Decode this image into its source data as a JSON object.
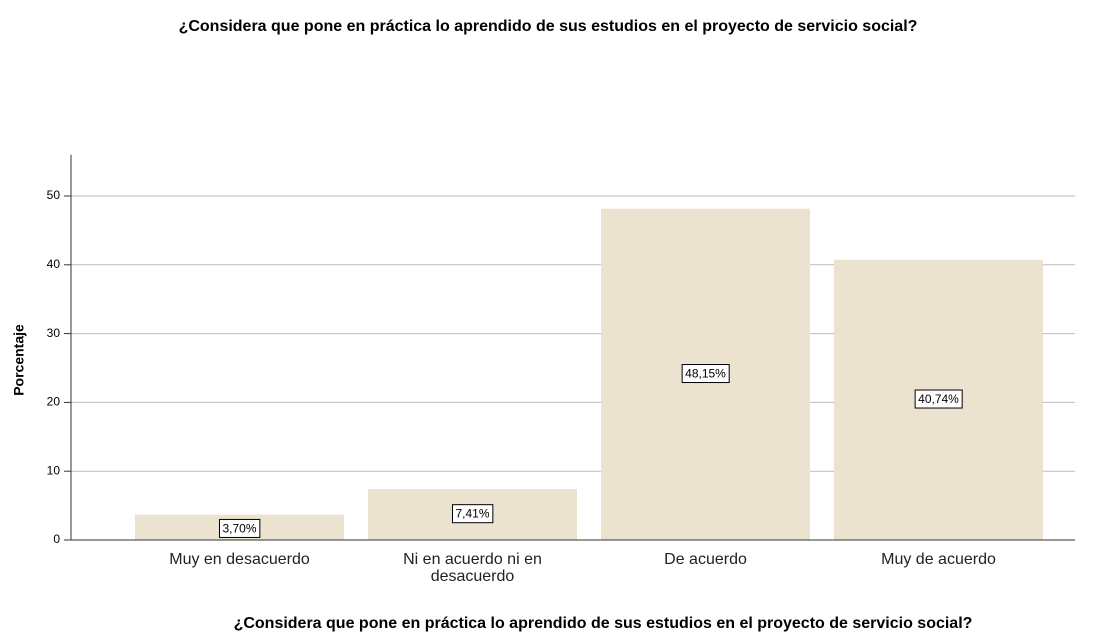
{
  "chart_data": {
    "type": "bar",
    "title": "¿Considera que pone en práctica lo aprendido de sus estudios en el proyecto de servicio social?",
    "x_label": "¿Considera que pone en práctica lo aprendido de sus estudios en el proyecto de servicio social?",
    "y_label": "Porcentaje",
    "categories": [
      "Muy en desacuerdo",
      "Ni en acuerdo ni en desacuerdo",
      "De acuerdo",
      "Muy de acuerdo"
    ],
    "values": [
      3.7,
      7.41,
      48.15,
      40.74
    ],
    "value_labels": [
      "3,70%",
      "7,41%",
      "48,15%",
      "40,74%"
    ],
    "color": "#ebe3cf",
    "ylim": [
      0,
      56
    ],
    "yticks": [
      0,
      10,
      20,
      30,
      40,
      50
    ],
    "grid": true
  }
}
